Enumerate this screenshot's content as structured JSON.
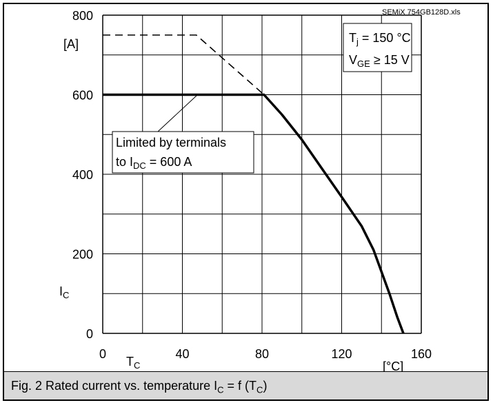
{
  "source_label": "SEMiX 754GB128D.xls",
  "caption": {
    "prefix": "Fig. 2 Rated current vs. temperature I",
    "sub1": "C",
    "mid": " = f (T",
    "sub2": "C",
    "suffix": ")"
  },
  "conditions": {
    "line1_main": "T",
    "line1_sub": "j",
    "line1_rest": " = 150 °C",
    "line2_main": "V",
    "line2_sub": "GE",
    "line2_rest": " ≥ 15 V"
  },
  "annotation": {
    "line1": "Limited by terminals",
    "line2_prefix": "to I",
    "line2_sub": "DC",
    "line2_rest": " = 600 A"
  },
  "chart_data": {
    "type": "line",
    "xlabel_main": "T",
    "xlabel_sub": "C",
    "xunit": "[°C]",
    "ylabel_main": "I",
    "ylabel_sub": "C",
    "yunit": "[A]",
    "xlim": [
      0,
      160
    ],
    "ylim": [
      0,
      800
    ],
    "x_ticks": [
      0,
      40,
      80,
      120,
      160
    ],
    "y_ticks": [
      0,
      200,
      400,
      600,
      800
    ],
    "grid": true,
    "series": [
      {
        "style": "solid",
        "x": [
          0,
          81,
          90,
          100,
          110,
          120,
          130,
          136,
          140,
          144,
          148,
          151
        ],
        "y": [
          600,
          600,
          550,
          487,
          415,
          343,
          270,
          210,
          155,
          100,
          40,
          0
        ]
      },
      {
        "style": "dashed",
        "x": [
          0,
          47,
          81
        ],
        "y": [
          750,
          750,
          600
        ]
      }
    ]
  }
}
